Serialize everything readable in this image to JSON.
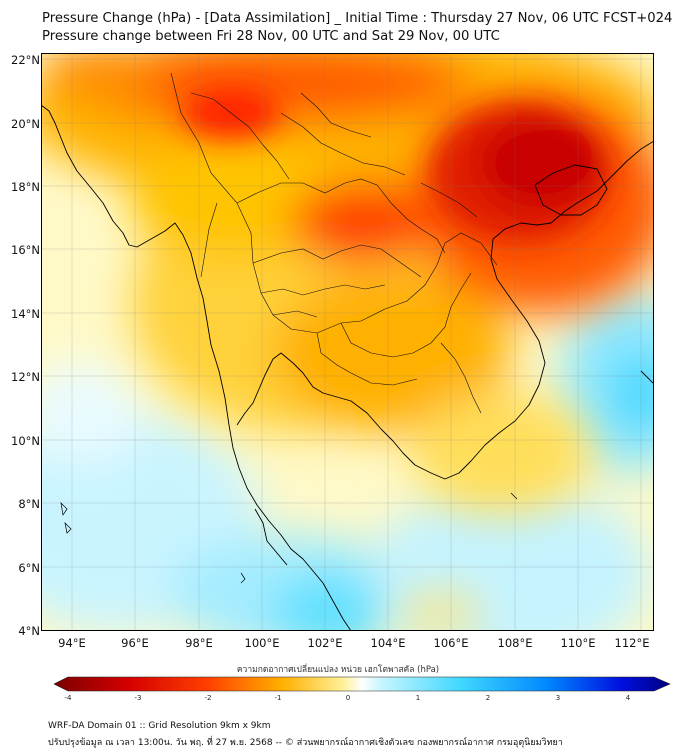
{
  "header": {
    "title_line1": "Pressure Change (hPa) - [Data Assimilation] _ Initial Time : Thursday 27 Nov, 06 UTC FCST+024",
    "title_line2": "Pressure change between Fri 28 Nov, 00 UTC and Sat 29 Nov, 00 UTC"
  },
  "map": {
    "lat_ticks": [
      "22°N",
      "20°N",
      "18°N",
      "16°N",
      "14°N",
      "12°N",
      "10°N",
      "8°N",
      "6°N",
      "4°N"
    ],
    "lon_ticks": [
      "94°E",
      "96°E",
      "98°E",
      "100°E",
      "102°E",
      "104°E",
      "106°E",
      "108°E",
      "110°E",
      "112°E"
    ],
    "lat_range": [
      4,
      22.2
    ],
    "lon_range": [
      93,
      112.5
    ],
    "colormap": "RdYlBu-style diverging",
    "fill_colors": {
      "strong_rise": "#c80000",
      "rise": "#ff3a00",
      "moderate_rise": "#ff9900",
      "slight_rise": "#ffd23a",
      "weak_rise": "#fff39c",
      "neutral": "#ffffff",
      "weak_fall": "#bff2ff",
      "fall": "#3ad7ff"
    },
    "coastline_color": "#000000"
  },
  "colorbar": {
    "label": "ความกดอากาศเปลี่ยนแปลง หน่วย เฮกโตพาสคัล (hPa)",
    "ticks": [
      "-4",
      "-3",
      "-2",
      "-1",
      "0",
      "1",
      "2",
      "3",
      "4"
    ],
    "range": [
      -4,
      4
    ]
  },
  "footer": {
    "line1": "WRF-DA Domain 01 :: Grid Resolution 9km x 9km",
    "line2": "ปรับปรุงข้อมูล ณ เวลา 13:00น. วัน พฤ. ที่ 27 พ.ย. 2568 -- © ส่วนพยากรณ์อากาศเชิงตัวเลข กองพยากรณ์อากาศ กรมอุตุนิยมวิทยา"
  }
}
